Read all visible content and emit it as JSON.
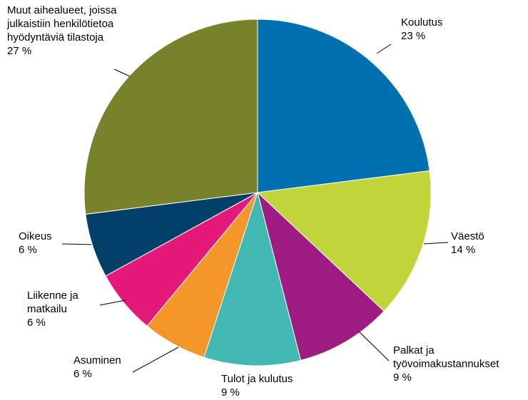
{
  "chart_data": {
    "type": "pie",
    "categories": [
      "Koulutus",
      "Väestö",
      "Palkat ja työvoimakustannukset",
      "Tulot ja kulutus",
      "Asuminen",
      "Liikenne ja matkailu",
      "Oikeus",
      "Muut aihealueet, joissa julkaistiin henkilötietoa hyödyntäviä tilastoja"
    ],
    "values": [
      23,
      14,
      9,
      9,
      6,
      6,
      6,
      27
    ],
    "value_labels": [
      "23 %",
      "14 %",
      "9 %",
      "9 %",
      "6 %",
      "6 %",
      "6 %",
      "27 %"
    ],
    "colors": [
      "#0070b0",
      "#c1d43a",
      "#9e1c82",
      "#42b8b3",
      "#f4962a",
      "#e5197a",
      "#003f67",
      "#77822a"
    ]
  }
}
